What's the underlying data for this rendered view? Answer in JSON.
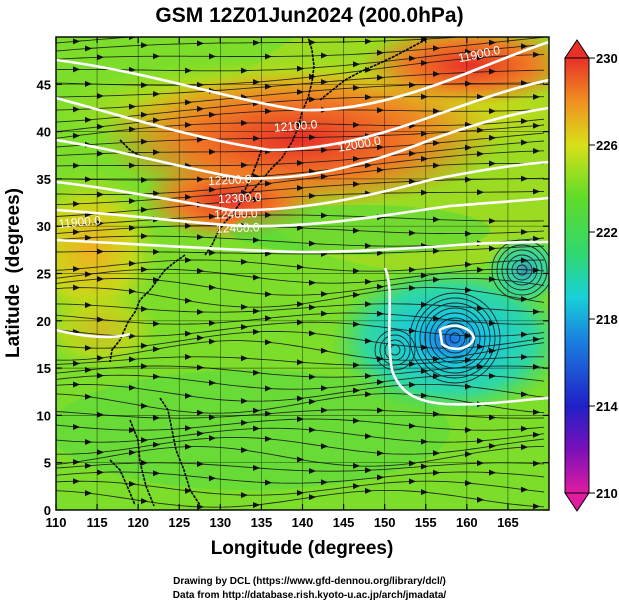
{
  "title": "GSM 12Z01Jun2024 (200.0hPa)",
  "x_axis": {
    "label": "Longitude (degrees)",
    "ticks": [
      "110",
      "115",
      "120",
      "125",
      "130",
      "135",
      "140",
      "145",
      "150",
      "155",
      "160",
      "165"
    ],
    "range": [
      110,
      170
    ]
  },
  "y_axis": {
    "label": "Latitude  (degrees)",
    "ticks": [
      "0",
      "5",
      "10",
      "15",
      "20",
      "25",
      "30",
      "35",
      "40",
      "45"
    ],
    "range": [
      0,
      50
    ]
  },
  "colorbar": {
    "labels": [
      "230",
      "226",
      "222",
      "218",
      "214",
      "210"
    ],
    "range": [
      210,
      230
    ],
    "colors": [
      "#e01ca0",
      "#3a0ab0",
      "#1a5ad8",
      "#18c8e0",
      "#38d860",
      "#7ce020",
      "#c8e018",
      "#f0c818",
      "#f08020",
      "#e83028"
    ]
  },
  "contour_labels": [
    "11900.0",
    "12000.0",
    "12100.0",
    "12200.0",
    "12300.0",
    "12400.0",
    "12400.0",
    "11900.0"
  ],
  "footer": {
    "line1": "Drawing by DCL (https://www.gfd-dennou.org/library/dcl/)",
    "line2": "Data from http://database.rish.kyoto-u.ac.jp/arch/jmadata/"
  }
}
